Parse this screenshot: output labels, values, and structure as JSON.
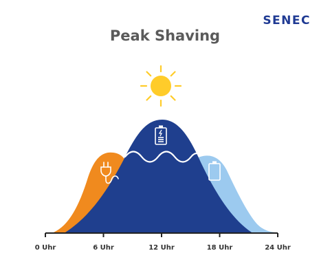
{
  "header": {
    "brand": "SENEC",
    "title": "Peak Shaving"
  },
  "axis": {
    "ticks": [
      {
        "value": 0,
        "label": "0 Uhr"
      },
      {
        "value": 6,
        "label": "6 Uhr"
      },
      {
        "value": 12,
        "label": "12 Uhr"
      },
      {
        "value": 18,
        "label": "18 Uhr"
      },
      {
        "value": 24,
        "label": "24 Uhr"
      }
    ]
  },
  "colors": {
    "grid_consumption": "#f08a1e",
    "solar_production": "#1f3f8e",
    "battery_discharge": "#9ccaef",
    "sun": "#ffcc2a",
    "axis": "#222222",
    "brand": "#1f3a93",
    "title": "#5a5a5a"
  },
  "icons": {
    "sun": "sun-icon",
    "grid": "plug-icon",
    "battery_charging": "battery-charging-icon",
    "battery": "battery-icon"
  }
}
